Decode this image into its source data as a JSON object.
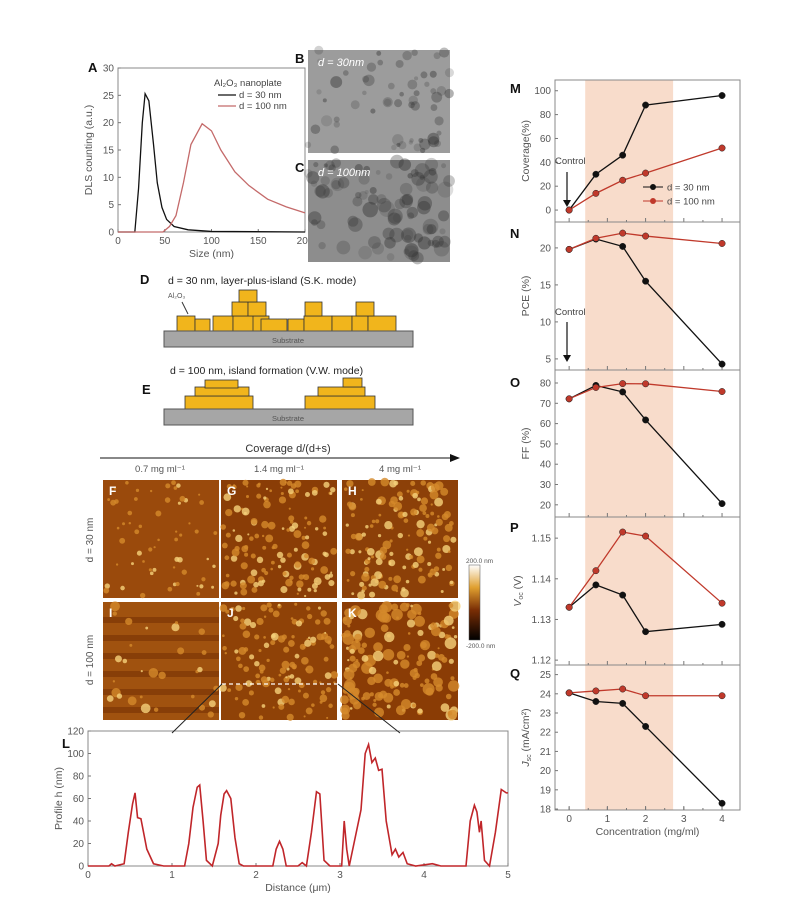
{
  "colors": {
    "d30": "#111111",
    "d100": "#c0392b",
    "dls100": "#c46a6a",
    "highlight": "#f8dccb",
    "island": "#f1b51c",
    "substrate": "#a6a6a6",
    "profile": "#c0262a"
  },
  "panels": {
    "A": "A",
    "B": "B",
    "C": "C",
    "D": "D",
    "E": "E",
    "F": "F",
    "G": "G",
    "H": "H",
    "I": "I",
    "J": "J",
    "K": "K",
    "L": "L",
    "M": "M",
    "N": "N",
    "O": "O",
    "P": "P",
    "Q": "Q"
  },
  "tem": {
    "b_label": "d = 30nm",
    "c_label": "d = 100nm"
  },
  "schematic": {
    "d_title": "d = 30 nm, layer-plus-island (S.K. mode)",
    "d_material": "Al₂O₃",
    "e_title": "d = 100 nm, island formation (V.W. mode)",
    "substrate": "Substrate"
  },
  "afm": {
    "axis_title": "Coverage d/(d+s)",
    "columns": [
      "0.7 mg ml⁻¹",
      "1.4 mg ml⁻¹",
      "4 mg ml⁻¹"
    ],
    "rows": [
      "d = 30 nm",
      "d = 100 nm"
    ],
    "colorbar_max": "200.0 nm",
    "colorbar_min": "-200.0 nm"
  },
  "chart_data": [
    {
      "id": "A",
      "type": "line",
      "xlabel": "Size (nm)",
      "ylabel": "DLS counting (a.u.)",
      "xlim": [
        0,
        200
      ],
      "ylim": [
        0,
        30
      ],
      "xticks": [
        0,
        50,
        100,
        150,
        200
      ],
      "yticks": [
        0,
        5,
        10,
        15,
        20,
        25,
        30
      ],
      "legend_title": "Al₂O₃ nanoplate",
      "legend_placement": "top-right",
      "series": [
        {
          "name": "d = 30 nm",
          "points": [
            [
              0,
              0
            ],
            [
              18,
              0
            ],
            [
              22,
              8
            ],
            [
              26,
              20
            ],
            [
              29,
              25.3
            ],
            [
              33,
              24
            ],
            [
              38,
              16
            ],
            [
              42,
              9
            ],
            [
              47,
              4.5
            ],
            [
              52,
              2.3
            ],
            [
              60,
              1
            ],
            [
              75,
              0.4
            ],
            [
              100,
              0.1
            ],
            [
              200,
              0
            ]
          ]
        },
        {
          "name": "d = 100 nm",
          "points": [
            [
              0,
              0
            ],
            [
              48,
              0
            ],
            [
              55,
              1
            ],
            [
              62,
              3
            ],
            [
              70,
              9
            ],
            [
              78,
              16
            ],
            [
              90,
              19.8
            ],
            [
              100,
              18.5
            ],
            [
              110,
              15
            ],
            [
              125,
              11
            ],
            [
              140,
              8.5
            ],
            [
              160,
              6
            ],
            [
              180,
              4.6
            ],
            [
              200,
              3.5
            ]
          ]
        }
      ]
    },
    {
      "id": "M",
      "type": "line",
      "ylabel": "Coverage(%)",
      "xlim": [
        -0.37,
        4.47
      ],
      "ylim": [
        -10,
        109
      ],
      "yticks": [
        0,
        20,
        40,
        60,
        80,
        100
      ],
      "highlight_range": [
        0.42,
        2.72
      ],
      "annotation": "Control",
      "legend_placement": "bottom-right",
      "x": [
        0,
        0.7,
        1.4,
        2,
        4
      ],
      "series": [
        {
          "name": "d = 30 nm",
          "values": [
            0,
            30,
            46,
            88,
            96
          ]
        },
        {
          "name": "d = 100 nm",
          "values": [
            0,
            14,
            25,
            31,
            52
          ]
        }
      ]
    },
    {
      "id": "N",
      "type": "line",
      "ylabel": "PCE (%)",
      "xlim": [
        -0.37,
        4.47
      ],
      "ylim": [
        3.5,
        23.5
      ],
      "yticks": [
        5,
        10,
        15,
        20
      ],
      "highlight_range": [
        0.42,
        2.72
      ],
      "annotation": "Control",
      "x": [
        0,
        0.7,
        1.4,
        2,
        4
      ],
      "series": [
        {
          "values": [
            19.8,
            21.2,
            20.2,
            15.5,
            4.3
          ]
        },
        {
          "values": [
            19.8,
            21.3,
            22.0,
            21.6,
            20.6
          ]
        }
      ]
    },
    {
      "id": "O",
      "type": "line",
      "ylabel": "FF (%)",
      "xlim": [
        -0.37,
        4.47
      ],
      "ylim": [
        14,
        86.4
      ],
      "yticks": [
        20,
        30,
        40,
        50,
        60,
        70,
        80
      ],
      "highlight_range": [
        0.42,
        2.72
      ],
      "x": [
        0,
        0.7,
        1.4,
        2,
        4
      ],
      "series": [
        {
          "values": [
            72.2,
            78.8,
            75.6,
            61.8,
            20.6
          ]
        },
        {
          "values": [
            72.2,
            77.8,
            79.7,
            79.6,
            75.8
          ]
        }
      ]
    },
    {
      "id": "P",
      "type": "line",
      "ylabel": "V",
      "ylabel_sub": "oc",
      "ylabel_unit": " (V)",
      "xlim": [
        -0.37,
        4.47
      ],
      "ylim": [
        1.1188,
        1.1552
      ],
      "yticks": [
        1.12,
        1.13,
        1.14,
        1.15
      ],
      "highlight_range": [
        0.42,
        2.72
      ],
      "x": [
        0,
        0.7,
        1.4,
        2,
        4
      ],
      "series": [
        {
          "values": [
            1.133,
            1.1385,
            1.136,
            1.127,
            1.1288
          ]
        },
        {
          "values": [
            1.133,
            1.142,
            1.1515,
            1.1505,
            1.134
          ]
        }
      ]
    },
    {
      "id": "Q",
      "type": "line",
      "ylabel": "J",
      "ylabel_sub": "sc",
      "ylabel_unit": " (mA/cm²)",
      "xlabel": "Concentration (mg/ml)",
      "xlim": [
        -0.37,
        4.47
      ],
      "ylim": [
        17.95,
        25.5
      ],
      "xticks": [
        0,
        1,
        2,
        3,
        4
      ],
      "yticks": [
        18,
        19,
        20,
        21,
        22,
        23,
        24,
        25
      ],
      "highlight_range": [
        0.42,
        2.72
      ],
      "x": [
        0,
        0.7,
        1.4,
        2,
        4
      ],
      "series": [
        {
          "values": [
            24.05,
            23.6,
            23.5,
            22.3,
            18.3
          ]
        },
        {
          "values": [
            24.05,
            24.15,
            24.25,
            23.9,
            23.9
          ]
        }
      ]
    },
    {
      "id": "L",
      "type": "line",
      "xlabel": "Distance (μm)",
      "ylabel": "Profile h (nm)",
      "xlim": [
        0,
        5
      ],
      "ylim": [
        0,
        120
      ],
      "xticks": [
        0,
        1,
        2,
        3,
        4,
        5
      ],
      "yticks": [
        0,
        20,
        40,
        60,
        80,
        100,
        120
      ],
      "series": [
        {
          "points": [
            [
              0,
              0
            ],
            [
              0.25,
              0
            ],
            [
              0.28,
              2
            ],
            [
              0.32,
              0
            ],
            [
              0.43,
              2
            ],
            [
              0.48,
              30
            ],
            [
              0.53,
              55
            ],
            [
              0.56,
              65
            ],
            [
              0.59,
              43
            ],
            [
              0.63,
              42
            ],
            [
              0.7,
              15
            ],
            [
              0.78,
              2
            ],
            [
              0.9,
              0
            ],
            [
              1.15,
              0
            ],
            [
              1.2,
              20
            ],
            [
              1.25,
              52
            ],
            [
              1.3,
              70
            ],
            [
              1.33,
              72
            ],
            [
              1.37,
              40
            ],
            [
              1.41,
              5
            ],
            [
              1.48,
              0
            ],
            [
              1.55,
              20
            ],
            [
              1.58,
              45
            ],
            [
              1.62,
              64
            ],
            [
              1.65,
              67
            ],
            [
              1.7,
              60
            ],
            [
              1.75,
              25
            ],
            [
              1.8,
              2
            ],
            [
              1.85,
              0
            ],
            [
              2.2,
              0
            ],
            [
              2.24,
              15
            ],
            [
              2.28,
              22
            ],
            [
              2.32,
              15
            ],
            [
              2.36,
              0
            ],
            [
              2.5,
              0
            ],
            [
              2.55,
              3
            ],
            [
              2.6,
              0
            ],
            [
              2.66,
              30
            ],
            [
              2.72,
              66
            ],
            [
              2.76,
              64
            ],
            [
              2.81,
              5
            ],
            [
              2.88,
              0
            ],
            [
              3.02,
              0
            ],
            [
              3.05,
              40
            ],
            [
              3.08,
              15
            ],
            [
              3.11,
              0
            ],
            [
              3.25,
              50
            ],
            [
              3.3,
              100
            ],
            [
              3.34,
              108
            ],
            [
              3.38,
              92
            ],
            [
              3.42,
              96
            ],
            [
              3.46,
              85
            ],
            [
              3.5,
              86
            ],
            [
              3.55,
              40
            ],
            [
              3.62,
              10
            ],
            [
              3.66,
              15
            ],
            [
              3.7,
              8
            ],
            [
              3.75,
              12
            ],
            [
              3.8,
              2
            ],
            [
              3.9,
              0
            ],
            [
              4.1,
              2
            ],
            [
              4.2,
              0
            ],
            [
              4.5,
              0
            ],
            [
              4.55,
              40
            ],
            [
              4.6,
              54
            ],
            [
              4.63,
              48
            ],
            [
              4.66,
              30
            ],
            [
              4.68,
              40
            ],
            [
              4.72,
              5
            ],
            [
              4.78,
              0
            ],
            [
              4.85,
              30
            ],
            [
              4.92,
              68
            ],
            [
              4.98,
              65
            ],
            [
              5,
              65
            ]
          ]
        }
      ]
    }
  ]
}
